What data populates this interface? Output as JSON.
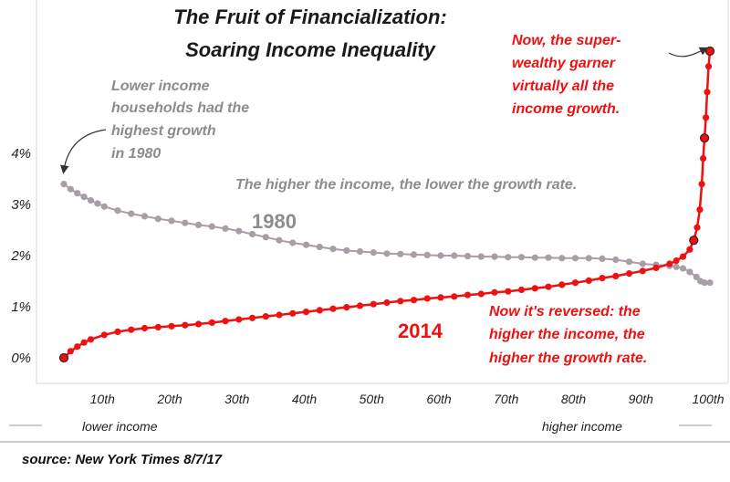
{
  "chart_data": {
    "type": "line",
    "title": [
      "The Fruit of Financialization:",
      "Soaring Income Inequality"
    ],
    "x_range": [
      4,
      100
    ],
    "ylim": [
      -0.2,
      6.4
    ],
    "y_ticks": [
      {
        "value": 0,
        "label": "0%"
      },
      {
        "value": 1,
        "label": "1%"
      },
      {
        "value": 2,
        "label": "2%"
      },
      {
        "value": 3,
        "label": "3%"
      },
      {
        "value": 4,
        "label": "4%"
      }
    ],
    "x_ticks": [
      {
        "value": 10,
        "label": "10th"
      },
      {
        "value": 20,
        "label": "20th"
      },
      {
        "value": 30,
        "label": "30th"
      },
      {
        "value": 40,
        "label": "40th"
      },
      {
        "value": 50,
        "label": "50th"
      },
      {
        "value": 60,
        "label": "60th"
      },
      {
        "value": 70,
        "label": "70th"
      },
      {
        "value": 80,
        "label": "80th"
      },
      {
        "value": 90,
        "label": "90th"
      },
      {
        "value": 100,
        "label": "100th"
      }
    ],
    "x_edge_labels": {
      "left": "lower income",
      "right": "higher income"
    },
    "grid": false,
    "series": [
      {
        "name": "1980",
        "color": "#a89ea7",
        "points": [
          [
            4,
            3.4
          ],
          [
            5,
            3.3
          ],
          [
            6,
            3.22
          ],
          [
            7,
            3.15
          ],
          [
            8,
            3.08
          ],
          [
            9,
            3.02
          ],
          [
            10,
            2.96
          ],
          [
            12,
            2.88
          ],
          [
            14,
            2.82
          ],
          [
            16,
            2.77
          ],
          [
            18,
            2.72
          ],
          [
            20,
            2.68
          ],
          [
            22,
            2.64
          ],
          [
            24,
            2.6
          ],
          [
            26,
            2.57
          ],
          [
            28,
            2.53
          ],
          [
            30,
            2.48
          ],
          [
            32,
            2.42
          ],
          [
            34,
            2.36
          ],
          [
            36,
            2.3
          ],
          [
            38,
            2.25
          ],
          [
            40,
            2.21
          ],
          [
            42,
            2.17
          ],
          [
            44,
            2.13
          ],
          [
            46,
            2.1
          ],
          [
            48,
            2.08
          ],
          [
            50,
            2.06
          ],
          [
            52,
            2.04
          ],
          [
            54,
            2.03
          ],
          [
            56,
            2.02
          ],
          [
            58,
            2.01
          ],
          [
            60,
            2.0
          ],
          [
            62,
            2.0
          ],
          [
            64,
            1.99
          ],
          [
            66,
            1.98
          ],
          [
            68,
            1.98
          ],
          [
            70,
            1.97
          ],
          [
            72,
            1.97
          ],
          [
            74,
            1.96
          ],
          [
            76,
            1.96
          ],
          [
            78,
            1.95
          ],
          [
            80,
            1.95
          ],
          [
            82,
            1.95
          ],
          [
            84,
            1.94
          ],
          [
            86,
            1.92
          ],
          [
            88,
            1.88
          ],
          [
            90,
            1.84
          ],
          [
            92,
            1.82
          ],
          [
            94,
            1.8
          ],
          [
            95,
            1.78
          ],
          [
            96,
            1.75
          ],
          [
            97,
            1.68
          ],
          [
            98,
            1.58
          ],
          [
            98.6,
            1.5
          ],
          [
            99.2,
            1.47
          ],
          [
            100,
            1.47
          ]
        ]
      },
      {
        "name": "2014",
        "color": "#ee1111",
        "points": [
          [
            4,
            0.0
          ],
          [
            5,
            0.13
          ],
          [
            6,
            0.22
          ],
          [
            7,
            0.3
          ],
          [
            8,
            0.36
          ],
          [
            10,
            0.45
          ],
          [
            12,
            0.51
          ],
          [
            14,
            0.55
          ],
          [
            16,
            0.58
          ],
          [
            18,
            0.6
          ],
          [
            20,
            0.62
          ],
          [
            22,
            0.64
          ],
          [
            24,
            0.66
          ],
          [
            26,
            0.69
          ],
          [
            28,
            0.72
          ],
          [
            30,
            0.75
          ],
          [
            32,
            0.78
          ],
          [
            34,
            0.81
          ],
          [
            36,
            0.84
          ],
          [
            38,
            0.87
          ],
          [
            40,
            0.9
          ],
          [
            42,
            0.93
          ],
          [
            44,
            0.96
          ],
          [
            46,
            0.99
          ],
          [
            48,
            1.02
          ],
          [
            50,
            1.05
          ],
          [
            52,
            1.08
          ],
          [
            54,
            1.11
          ],
          [
            56,
            1.13
          ],
          [
            58,
            1.16
          ],
          [
            60,
            1.18
          ],
          [
            62,
            1.2
          ],
          [
            64,
            1.23
          ],
          [
            66,
            1.25
          ],
          [
            68,
            1.28
          ],
          [
            70,
            1.3
          ],
          [
            72,
            1.33
          ],
          [
            74,
            1.36
          ],
          [
            76,
            1.39
          ],
          [
            78,
            1.43
          ],
          [
            80,
            1.47
          ],
          [
            82,
            1.51
          ],
          [
            84,
            1.56
          ],
          [
            86,
            1.6
          ],
          [
            88,
            1.65
          ],
          [
            90,
            1.7
          ],
          [
            92,
            1.76
          ],
          [
            94,
            1.84
          ],
          [
            95,
            1.9
          ],
          [
            96,
            1.98
          ],
          [
            97,
            2.12
          ],
          [
            97.6,
            2.3
          ],
          [
            98.1,
            2.55
          ],
          [
            98.5,
            2.9
          ],
          [
            98.8,
            3.4
          ],
          [
            99.0,
            3.9
          ],
          [
            99.2,
            4.3
          ],
          [
            99.4,
            4.7
          ],
          [
            99.6,
            5.2
          ],
          [
            99.8,
            5.7
          ],
          [
            100,
            6.0
          ]
        ]
      }
    ],
    "highlight_points": [
      {
        "series": 1,
        "x": 100,
        "y": 6.0
      },
      {
        "series": 1,
        "x": 99.2,
        "y": 4.3
      },
      {
        "series": 1,
        "x": 97.6,
        "y": 2.3
      },
      {
        "series": 1,
        "x": 4,
        "y": 0.0
      }
    ],
    "annotations": {
      "lower_income_note": [
        "Lower income",
        "households had the",
        "highest growth",
        "in 1980"
      ],
      "trend_1980": "The higher the income, the lower the growth rate.",
      "label_1980": "1980",
      "label_2014": "2014",
      "super_wealthy_note": [
        "Now, the super-",
        "wealthy garner",
        "virtually all the",
        "income growth."
      ],
      "reversed_note": [
        "Now it's reversed: the",
        "higher the income, the",
        "higher the growth rate."
      ]
    }
  },
  "source": "source: New York Times  8/7/17"
}
